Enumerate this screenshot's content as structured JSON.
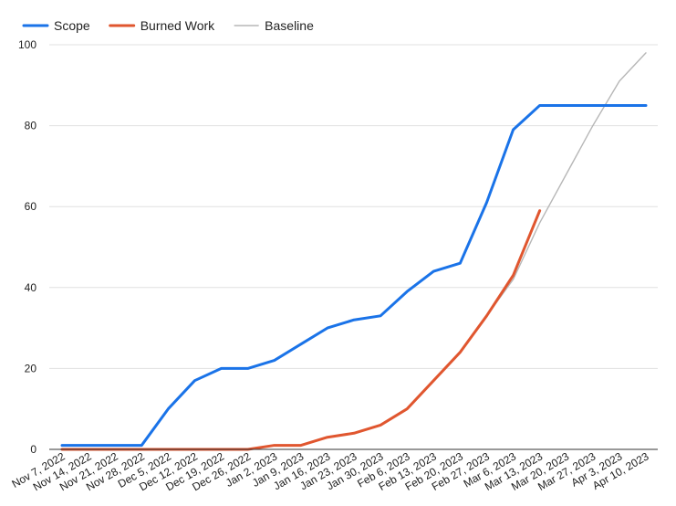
{
  "chart_data": {
    "type": "line",
    "title": "",
    "xlabel": "",
    "ylabel": "",
    "ylim": [
      0,
      100
    ],
    "yticks": [
      0,
      20,
      40,
      60,
      80,
      100
    ],
    "grid": true,
    "legend_position": "top-left",
    "categories": [
      "Nov 7, 2022",
      "Nov 14, 2022",
      "Nov 21, 2022",
      "Nov 28, 2022",
      "Dec 5, 2022",
      "Dec 12, 2022",
      "Dec 19, 2022",
      "Dec 26, 2022",
      "Jan 2, 2023",
      "Jan 9, 2023",
      "Jan 16, 2023",
      "Jan 23, 2023",
      "Jan 30, 2023",
      "Feb 6, 2023",
      "Feb 13, 2023",
      "Feb 20, 2023",
      "Feb 27, 2023",
      "Mar 6, 2023",
      "Mar 13, 2023",
      "Mar 20, 2023",
      "Mar 27, 2023",
      "Apr 3, 2023",
      "Apr 10, 2023"
    ],
    "series": [
      {
        "name": "Scope",
        "color": "#1a73e8",
        "values": [
          1,
          1,
          1,
          1,
          10,
          17,
          20,
          20,
          22,
          26,
          30,
          32,
          33,
          39,
          44,
          46,
          61,
          79,
          85,
          85,
          85,
          85,
          85
        ]
      },
      {
        "name": "Burned Work",
        "color": "#e0562f",
        "values": [
          0,
          0,
          0,
          0,
          0,
          0,
          0,
          0,
          1,
          1,
          3,
          4,
          6,
          10,
          17,
          24,
          33,
          43,
          59,
          null,
          null,
          null,
          null
        ]
      },
      {
        "name": "Baseline",
        "color": "#b7b7b7",
        "values": [
          0,
          0,
          0,
          0,
          0,
          0,
          0,
          0,
          1,
          1,
          3,
          4,
          6,
          10,
          17,
          24,
          33,
          42,
          56,
          68,
          80,
          91,
          98
        ]
      }
    ]
  }
}
